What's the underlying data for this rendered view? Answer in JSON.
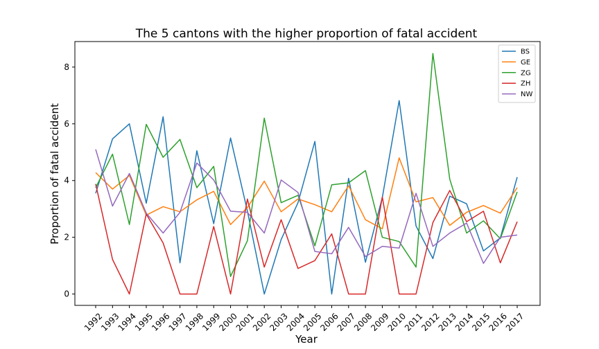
{
  "chart_data": {
    "type": "line",
    "title": "The 5 cantons with the higher proportion of fatal accident",
    "xlabel": "Year",
    "ylabel": "Proportion of fatal accident",
    "ylim": [
      -0.4,
      8.9
    ],
    "yticks": [
      0,
      2,
      4,
      6,
      8
    ],
    "grid": false,
    "legend_position": "top-right",
    "categories": [
      "1992",
      "1993",
      "1994",
      "1995",
      "1996",
      "1997",
      "1998",
      "1999",
      "2000",
      "2001",
      "2002",
      "2003",
      "2004",
      "2005",
      "2006",
      "2007",
      "2008",
      "2009",
      "2010",
      "2011",
      "2012",
      "2013",
      "2014",
      "2015",
      "2016",
      "2017"
    ],
    "series": [
      {
        "name": "BS",
        "color": "#1f77b4",
        "values": [
          3.55,
          5.47,
          6.0,
          3.2,
          6.25,
          1.1,
          5.05,
          2.48,
          5.5,
          2.92,
          0.0,
          1.92,
          3.22,
          5.38,
          0.0,
          4.08,
          1.12,
          3.4,
          6.82,
          2.4,
          1.25,
          3.45,
          3.18,
          1.52,
          1.98,
          4.12
        ]
      },
      {
        "name": "GE",
        "color": "#ff7f0e",
        "values": [
          4.28,
          3.7,
          4.18,
          2.78,
          3.08,
          2.9,
          3.32,
          3.62,
          2.45,
          3.05,
          3.98,
          2.9,
          3.35,
          3.15,
          2.9,
          3.82,
          2.62,
          2.3,
          4.8,
          3.25,
          3.4,
          2.42,
          2.88,
          3.12,
          2.85,
          3.75
        ]
      },
      {
        "name": "ZG",
        "color": "#2ca02c",
        "values": [
          3.75,
          4.93,
          2.45,
          5.98,
          4.82,
          5.45,
          3.75,
          4.5,
          0.62,
          1.88,
          6.2,
          3.22,
          3.48,
          1.7,
          3.85,
          3.92,
          4.35,
          2.0,
          1.85,
          0.95,
          8.48,
          4.05,
          2.15,
          2.58,
          1.95,
          3.6
        ]
      },
      {
        "name": "ZH",
        "color": "#d62728",
        "values": [
          3.88,
          1.22,
          0.0,
          2.82,
          1.8,
          0.0,
          0.0,
          2.38,
          0.0,
          3.35,
          0.95,
          2.62,
          0.9,
          1.18,
          2.12,
          0.0,
          0.0,
          3.42,
          0.0,
          0.0,
          2.52,
          3.65,
          2.55,
          2.92,
          1.1,
          2.55
        ]
      },
      {
        "name": "NW",
        "color": "#9467bd",
        "values": [
          5.1,
          3.1,
          4.25,
          2.85,
          2.15,
          2.88,
          4.62,
          4.02,
          2.92,
          2.88,
          2.15,
          4.02,
          3.58,
          1.5,
          1.42,
          2.35,
          1.32,
          1.68,
          1.62,
          3.55,
          1.68,
          2.15,
          2.5,
          1.08,
          2.0,
          2.08
        ]
      }
    ]
  }
}
